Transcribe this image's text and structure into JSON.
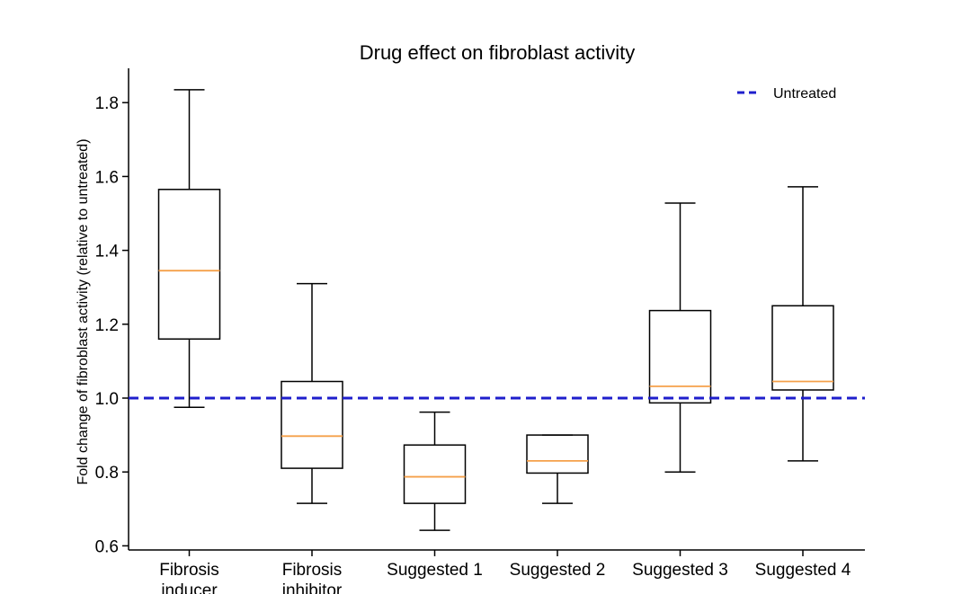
{
  "chart_data": {
    "type": "box",
    "title": "Drug effect on fibroblast activity",
    "ylabel": "Fold change of fibroblast activity (relative to untreated)",
    "xlabel": "",
    "ylim": [
      0.59,
      1.89
    ],
    "yticks": [
      0.6,
      0.8,
      1.0,
      1.2,
      1.4,
      1.6,
      1.8
    ],
    "ytick_labels": [
      "0.6",
      "0.8",
      "1.0",
      "1.2",
      "1.4",
      "1.6",
      "1.8"
    ],
    "grid": false,
    "legend_position": "top-right",
    "categories": [
      [
        "Fibrosis",
        "inducer"
      ],
      [
        "Fibrosis",
        "inhibitor"
      ],
      [
        "Suggested 1"
      ],
      [
        "Suggested 2"
      ],
      [
        "Suggested 3"
      ],
      [
        "Suggested 4"
      ]
    ],
    "boxes": [
      {
        "whisker_low": 0.975,
        "q1": 1.16,
        "median": 1.345,
        "q3": 1.565,
        "whisker_high": 1.835
      },
      {
        "whisker_low": 0.715,
        "q1": 0.81,
        "median": 0.897,
        "q3": 1.045,
        "whisker_high": 1.31
      },
      {
        "whisker_low": 0.642,
        "q1": 0.715,
        "median": 0.787,
        "q3": 0.873,
        "whisker_high": 0.962
      },
      {
        "whisker_low": 0.715,
        "q1": 0.797,
        "median": 0.83,
        "q3": 0.9,
        "whisker_high": 0.9
      },
      {
        "whisker_low": 0.8,
        "q1": 0.987,
        "median": 1.032,
        "q3": 1.237,
        "whisker_high": 1.528
      },
      {
        "whisker_low": 0.83,
        "q1": 1.022,
        "median": 1.045,
        "q3": 1.25,
        "whisker_high": 1.572
      }
    ],
    "reference_line": {
      "name": "Untreated",
      "value": 1.0,
      "color": "#1f1fcc",
      "style": "dashed"
    },
    "colors": {
      "box": "#000000",
      "median": "#f5a04a",
      "axis": "#000000"
    }
  }
}
